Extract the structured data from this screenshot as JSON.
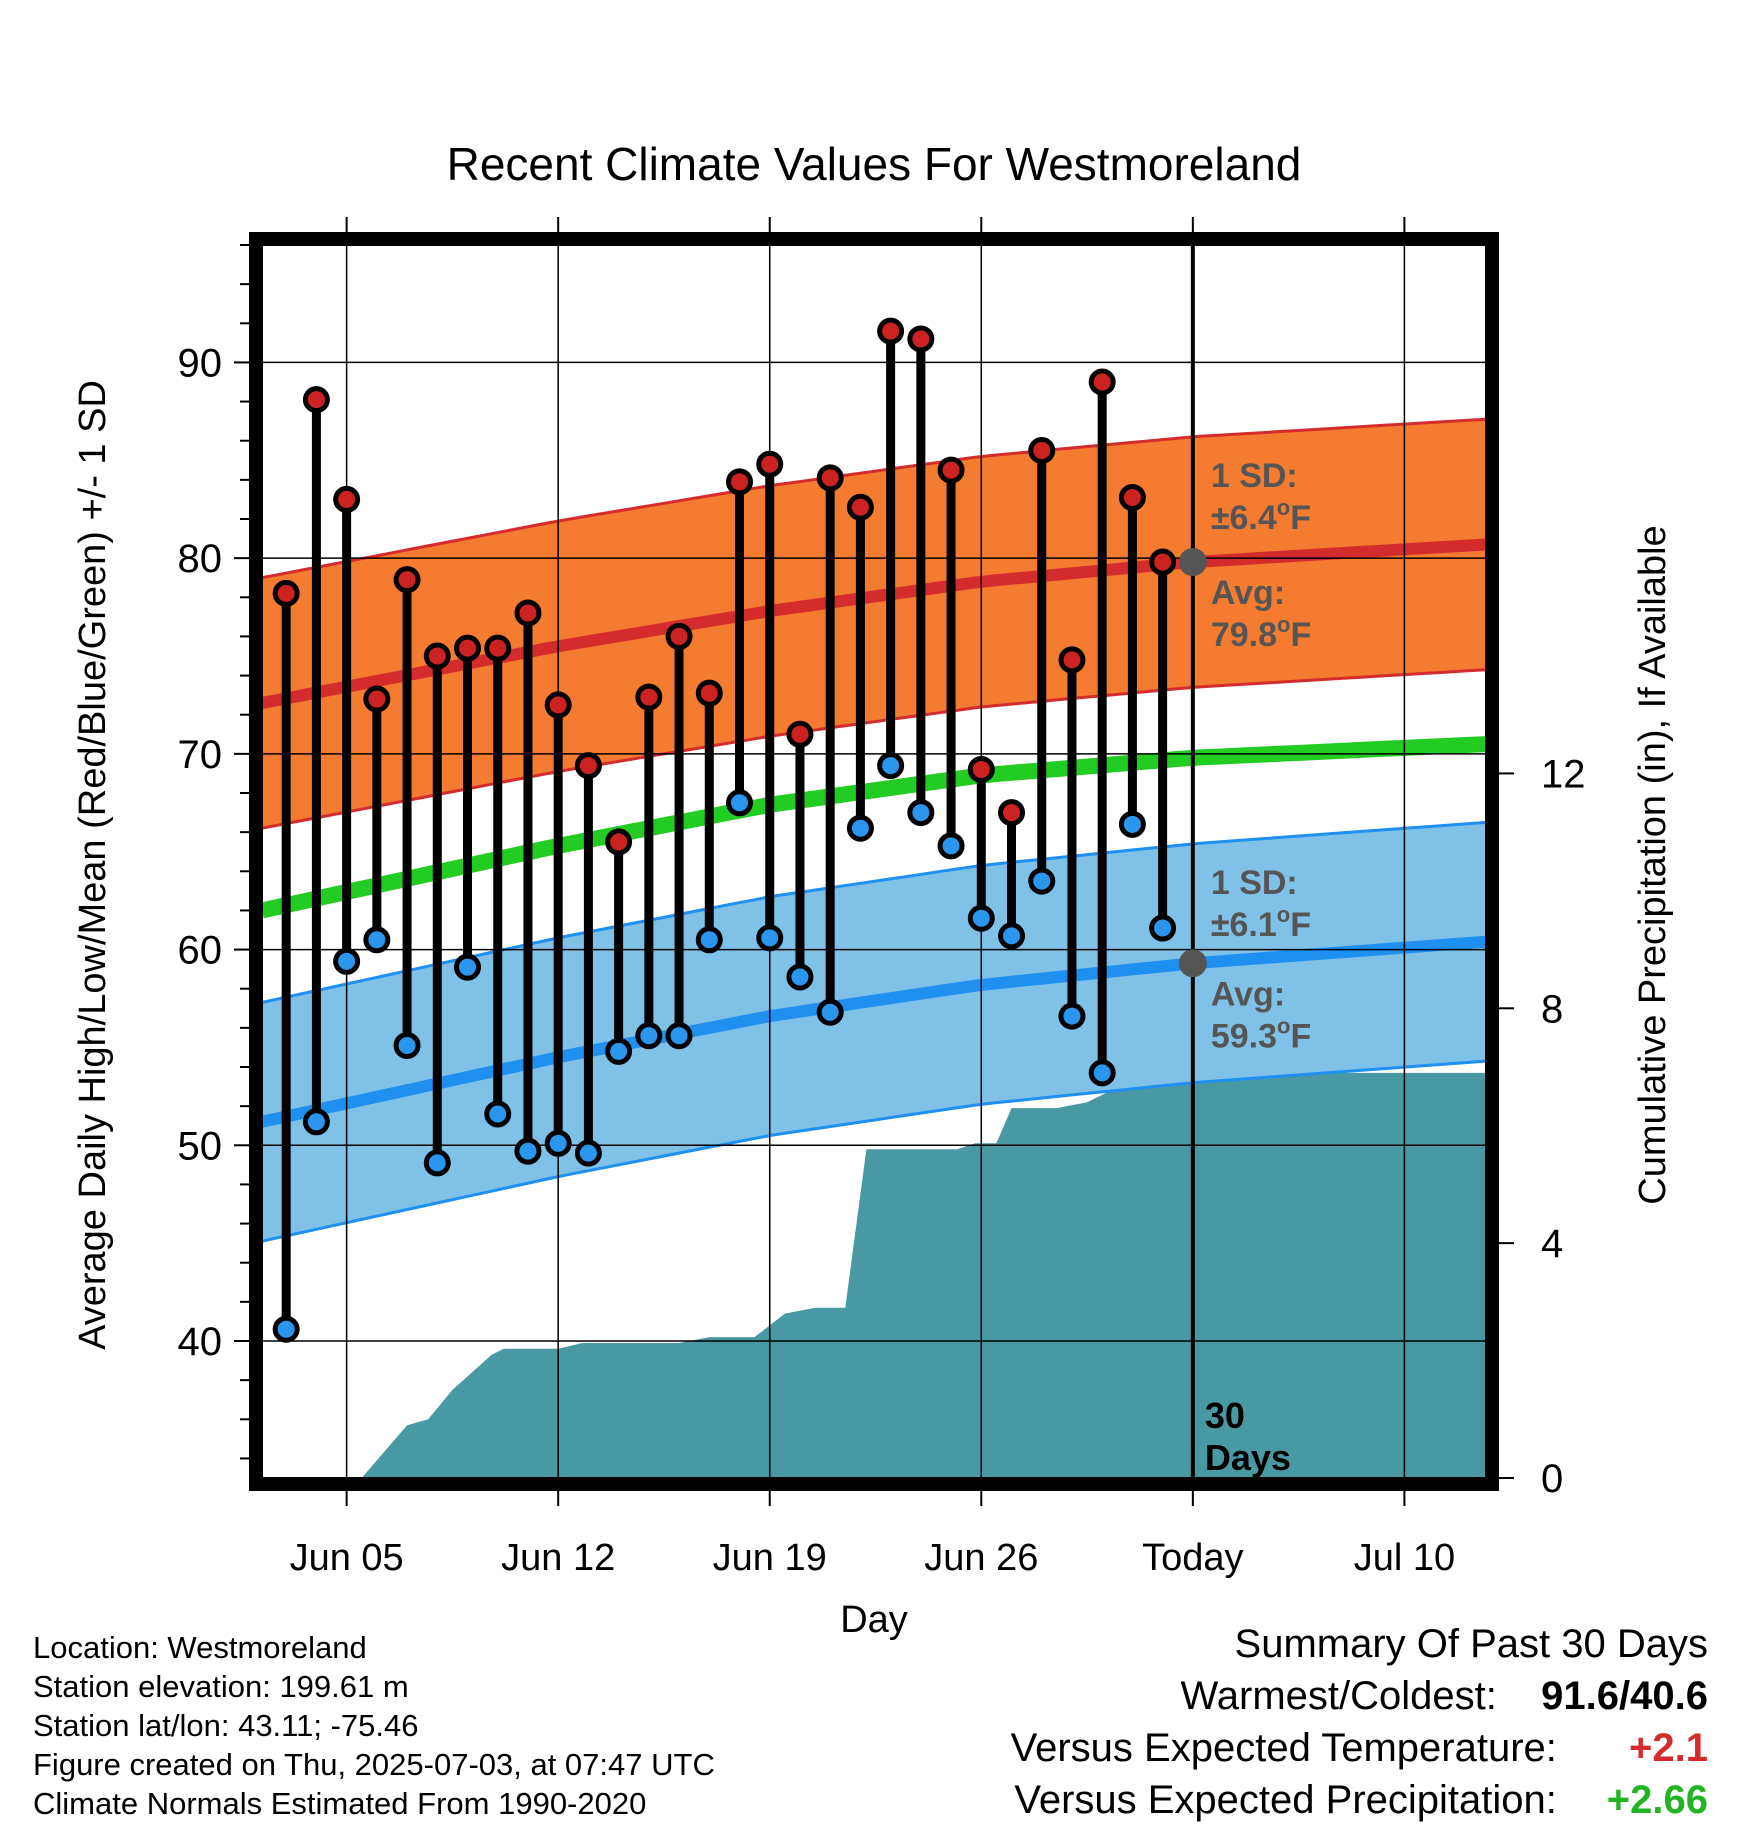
{
  "chart_data": {
    "type": "line",
    "title": "Recent Climate Values For Westmoreland",
    "xlabel": "Day",
    "ylabel_left": "Average Daily High/Low/Mean (Red/Blue/Green) +/- 1 SD",
    "ylabel_right": "Cumulative Precipitation (in), If Available",
    "ylim_left": [
      33,
      96
    ],
    "ylim_right": [
      0,
      21
    ],
    "y_ticks_left": [
      40,
      50,
      60,
      70,
      80,
      90
    ],
    "y_ticks_right": [
      0,
      4,
      8,
      12
    ],
    "x_ticks": [
      {
        "day": 5,
        "label": "Jun 05"
      },
      {
        "day": 12,
        "label": "Jun 12"
      },
      {
        "day": 19,
        "label": "Jun 19"
      },
      {
        "day": 26,
        "label": "Jun 26"
      },
      {
        "day": 33,
        "label": "Today"
      },
      {
        "day": 40,
        "label": "Jul 10"
      }
    ],
    "xlim_days": [
      2.2,
      42.7
    ],
    "today_day": 33,
    "days": [
      3,
      4,
      5,
      6,
      7,
      8,
      9,
      10,
      11,
      12,
      13,
      14,
      15,
      16,
      17,
      18,
      19,
      20,
      21,
      22,
      23,
      24,
      25,
      26,
      27,
      28,
      29,
      30,
      31,
      32
    ],
    "daily_high": [
      78.2,
      88.1,
      83.0,
      72.8,
      78.9,
      75.0,
      75.4,
      75.4,
      77.2,
      72.5,
      69.4,
      65.5,
      72.9,
      76.0,
      73.1,
      83.9,
      84.8,
      71.0,
      84.1,
      82.6,
      91.6,
      91.2,
      84.5,
      69.2,
      67.0,
      85.5,
      74.8,
      89.0,
      83.1,
      79.8
    ],
    "daily_low": [
      40.6,
      51.2,
      59.4,
      60.5,
      55.1,
      49.1,
      59.1,
      51.6,
      49.7,
      50.1,
      49.6,
      54.8,
      55.6,
      55.6,
      60.5,
      67.5,
      60.6,
      58.6,
      56.8,
      66.2,
      69.4,
      67.0,
      65.3,
      61.6,
      60.7,
      63.5,
      56.6,
      53.7,
      66.4,
      61.1
    ],
    "normal_high": {
      "days": [
        2.2,
        12,
        19,
        26,
        33,
        42.7
      ],
      "values": [
        72.6,
        75.5,
        77.3,
        78.8,
        79.8,
        80.7
      ]
    },
    "normal_high_sd": 6.4,
    "normal_low": {
      "days": [
        2.2,
        12,
        19,
        26,
        33,
        42.7
      ],
      "values": [
        51.2,
        54.5,
        56.6,
        58.2,
        59.3,
        60.4
      ]
    },
    "normal_low_sd": 6.1,
    "normal_mean": {
      "days": [
        2.2,
        12,
        19,
        26,
        33,
        42.7
      ],
      "values": [
        62.0,
        65.3,
        67.4,
        68.9,
        69.8,
        70.5
      ]
    },
    "precip_cumulative": {
      "days": [
        2.2,
        5.5,
        7,
        7.7,
        8.5,
        9.8,
        10.2,
        11,
        12,
        12.8,
        14,
        15,
        16,
        17,
        18,
        18.5,
        19.5,
        20.5,
        21.5,
        22.2,
        23.5,
        24.5,
        25.2,
        25.8,
        26.5,
        27,
        27.5,
        28.5,
        29.5,
        30.3,
        31,
        33,
        42.7
      ],
      "values": [
        0,
        0,
        0.9,
        1.0,
        1.5,
        2.1,
        2.2,
        2.2,
        2.2,
        2.3,
        2.3,
        2.3,
        2.3,
        2.4,
        2.4,
        2.4,
        2.8,
        2.9,
        2.9,
        5.6,
        5.6,
        5.6,
        5.6,
        5.7,
        5.7,
        6.3,
        6.3,
        6.3,
        6.4,
        6.6,
        6.9,
        6.9,
        6.9
      ]
    },
    "annotations": {
      "high_sd_label_1": "1 SD:",
      "high_sd_label_2": "±6.4",
      "high_avg_label_1": "Avg:",
      "high_avg_label_2": "79.8",
      "low_sd_label_1": "1 SD:",
      "low_sd_label_2": "±6.1",
      "low_avg_label_1": "Avg:",
      "low_avg_label_2": "59.3",
      "degree_unit": "F",
      "days_label_1": "30",
      "days_label_2": "Days"
    },
    "colors": {
      "high_band": "#f47b30",
      "high_line": "#d42c2c",
      "low_band": "#80c1e8",
      "low_line": "#1f8ff0",
      "mean_line": "#22cc22",
      "precip": "#4999a4",
      "high_marker": "#cc2222",
      "low_marker": "#2a96ee",
      "annotation": "#555555"
    }
  },
  "info": {
    "location": "Location: Westmoreland",
    "elevation": "Station elevation: 199.61 m",
    "latlon": "Station lat/lon: 43.11; -75.46",
    "created": "Figure created on Thu, 2025-07-03, at 07:47 UTC",
    "normals": "Climate Normals Estimated From 1990-2020"
  },
  "summary": {
    "title": "Summary Of Past 30 Days",
    "warmest_label": "Warmest/Coldest:",
    "warmest_value": "91.6/40.6",
    "temp_label": "Versus Expected Temperature:",
    "temp_value": "+2.1",
    "precip_label": "Versus Expected Precipitation:",
    "precip_value": "+2.66"
  }
}
